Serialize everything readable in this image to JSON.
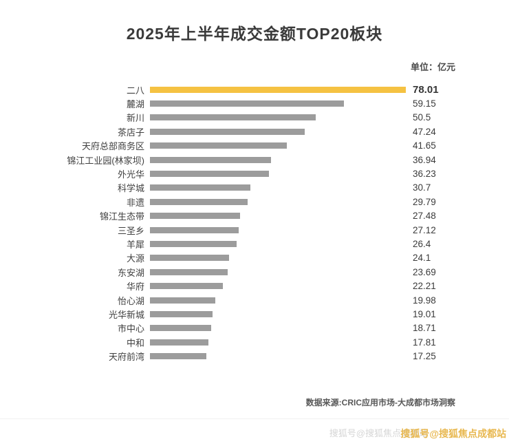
{
  "title": "2025年上半年成交金额TOP20板块",
  "unit_label": "单位：亿元",
  "source": "数据来源:CRIC应用市场-大成都市场洞察",
  "watermark": "搜狐号@搜狐焦点成都站",
  "colors": {
    "accent": "#F5C242",
    "bar": "#9C9C9C",
    "text": "#3F3F3F"
  },
  "chart_data": {
    "type": "bar",
    "orientation": "horizontal",
    "title": "2025年上半年成交金额TOP20板块",
    "unit": "亿元",
    "categories": [
      "二八",
      "麓湖",
      "新川",
      "茶店子",
      "天府总部商务区",
      "锦江工业园(林家坝)",
      "外光华",
      "科学城",
      "非遗",
      "锦江生态带",
      "三圣乡",
      "羊犀",
      "大源",
      "东安湖",
      "华府",
      "怡心湖",
      "光华新城",
      "市中心",
      "中和",
      "天府前湾"
    ],
    "values": [
      78.01,
      59.15,
      50.5,
      47.24,
      41.65,
      36.94,
      36.23,
      30.7,
      29.79,
      27.48,
      27.12,
      26.4,
      24.1,
      23.69,
      22.21,
      19.98,
      19.01,
      18.71,
      17.81,
      17.25
    ],
    "highlight_index": 0,
    "xlim": [
      0,
      78.01
    ],
    "value_labels": true,
    "legend": false,
    "grid": false
  }
}
